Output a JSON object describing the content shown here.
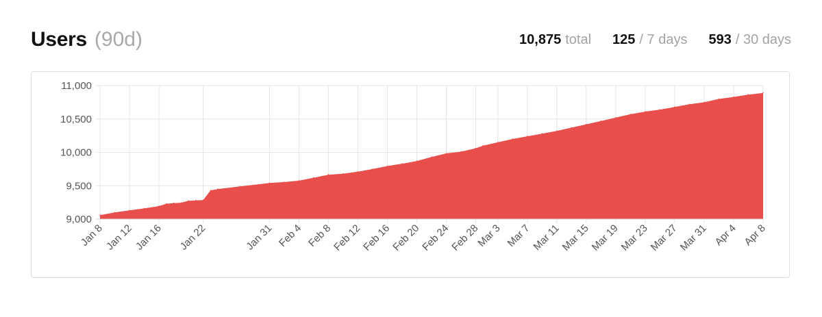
{
  "header": {
    "title": "Users",
    "range": "(90d)",
    "stats": [
      {
        "value": "10,875",
        "label": "total"
      },
      {
        "value": "125",
        "label": "/ 7 days"
      },
      {
        "value": "593",
        "label": "/ 30 days"
      }
    ]
  },
  "colors": {
    "area": "#e84e4b",
    "grid": "#e6e6e6",
    "axis_text": "#555555"
  },
  "chart_data": {
    "type": "area",
    "title": "",
    "xlabel": "",
    "ylabel": "",
    "ylim": [
      9000,
      11000
    ],
    "y_ticks": [
      9000,
      9500,
      10000,
      10500,
      11000
    ],
    "y_tick_labels": [
      "9,000",
      "9,500",
      "10,000",
      "10,500",
      "11,000"
    ],
    "x_tick_labels": [
      "Jan 8",
      "Jan 12",
      "Jan 16",
      "Jan 22",
      "Jan 31",
      "Feb 4",
      "Feb 8",
      "Feb 12",
      "Feb 16",
      "Feb 20",
      "Feb 24",
      "Feb 28",
      "Mar 3",
      "Mar 7",
      "Mar 11",
      "Mar 15",
      "Mar 19",
      "Mar 23",
      "Mar 27",
      "Mar 31",
      "Apr 4",
      "Apr 8"
    ],
    "grid": true,
    "series": [
      {
        "x": [
          "Jan 8",
          "Jan 10",
          "Jan 12",
          "Jan 14",
          "Jan 16",
          "Jan 17",
          "Jan 18",
          "Jan 19",
          "Jan 20",
          "Jan 21",
          "Jan 22",
          "Jan 23",
          "Jan 24",
          "Jan 27",
          "Jan 31",
          "Feb 2",
          "Feb 4",
          "Feb 6",
          "Feb 8",
          "Feb 10",
          "Feb 12",
          "Feb 14",
          "Feb 16",
          "Feb 18",
          "Feb 20",
          "Feb 22",
          "Feb 24",
          "Feb 26",
          "Feb 28",
          "Mar 1",
          "Mar 3",
          "Mar 5",
          "Mar 7",
          "Mar 9",
          "Mar 11",
          "Mar 13",
          "Mar 15",
          "Mar 17",
          "Mar 19",
          "Mar 21",
          "Mar 23",
          "Mar 25",
          "Mar 27",
          "Mar 29",
          "Mar 31",
          "Apr 2",
          "Apr 4",
          "Apr 6",
          "Apr 8"
        ],
        "values": [
          9060,
          9100,
          9130,
          9160,
          9195,
          9230,
          9240,
          9245,
          9275,
          9280,
          9285,
          9430,
          9450,
          9490,
          9540,
          9555,
          9575,
          9620,
          9665,
          9680,
          9710,
          9750,
          9795,
          9830,
          9870,
          9930,
          9985,
          10010,
          10060,
          10100,
          10150,
          10200,
          10240,
          10280,
          10320,
          10370,
          10420,
          10470,
          10520,
          10570,
          10610,
          10640,
          10680,
          10720,
          10750,
          10800,
          10830,
          10865,
          10890
        ]
      }
    ]
  }
}
